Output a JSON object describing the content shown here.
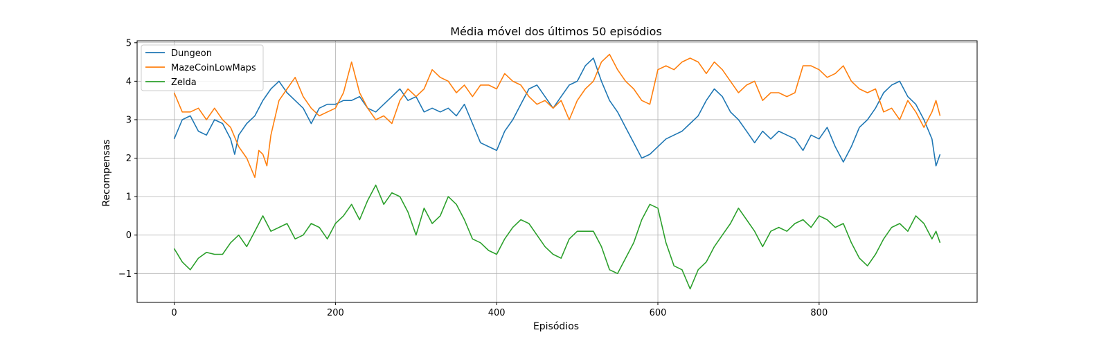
{
  "chart_data": {
    "type": "line",
    "title": "Média móvel dos últimos 50 episódios",
    "xlabel": "Episódios",
    "ylabel": "Recompensas",
    "xlim": [
      -46,
      996
    ],
    "ylim": [
      -1.75,
      5.05
    ],
    "xticks": [
      0,
      200,
      400,
      600,
      800
    ],
    "yticks": [
      -1,
      0,
      1,
      2,
      3,
      4,
      5
    ],
    "xtick_labels": [
      "0",
      "200",
      "400",
      "600",
      "800"
    ],
    "ytick_labels": [
      "−1",
      "0",
      "1",
      "2",
      "3",
      "4",
      "5"
    ],
    "grid": true,
    "legend_position": "top-left",
    "series": [
      {
        "name": "Dungeon",
        "color": "#1f77b4",
        "x": [
          0,
          10,
          20,
          30,
          40,
          50,
          60,
          70,
          75,
          80,
          90,
          100,
          110,
          120,
          130,
          140,
          150,
          160,
          170,
          180,
          190,
          200,
          210,
          220,
          230,
          240,
          250,
          260,
          270,
          280,
          290,
          300,
          310,
          320,
          330,
          340,
          350,
          360,
          370,
          380,
          390,
          400,
          410,
          420,
          430,
          440,
          450,
          460,
          470,
          480,
          490,
          500,
          510,
          520,
          530,
          540,
          550,
          560,
          570,
          580,
          590,
          600,
          610,
          620,
          630,
          640,
          650,
          660,
          670,
          680,
          690,
          700,
          710,
          720,
          730,
          740,
          750,
          760,
          770,
          780,
          790,
          800,
          810,
          820,
          830,
          840,
          850,
          860,
          870,
          880,
          890,
          900,
          910,
          920,
          930,
          940,
          945,
          950
        ],
        "y": [
          2.5,
          3.0,
          3.1,
          2.7,
          2.6,
          3.0,
          2.9,
          2.5,
          2.1,
          2.6,
          2.9,
          3.1,
          3.5,
          3.8,
          4.0,
          3.7,
          3.5,
          3.3,
          2.9,
          3.3,
          3.4,
          3.4,
          3.5,
          3.5,
          3.6,
          3.3,
          3.2,
          3.4,
          3.6,
          3.8,
          3.5,
          3.6,
          3.2,
          3.3,
          3.2,
          3.3,
          3.1,
          3.4,
          2.9,
          2.4,
          2.3,
          2.2,
          2.7,
          3.0,
          3.4,
          3.8,
          3.9,
          3.6,
          3.3,
          3.6,
          3.9,
          4.0,
          4.4,
          4.6,
          4.0,
          3.5,
          3.2,
          2.8,
          2.4,
          2.0,
          2.1,
          2.3,
          2.5,
          2.6,
          2.7,
          2.9,
          3.1,
          3.5,
          3.8,
          3.6,
          3.2,
          3.0,
          2.7,
          2.4,
          2.7,
          2.5,
          2.7,
          2.6,
          2.5,
          2.2,
          2.6,
          2.5,
          2.8,
          2.3,
          1.9,
          2.3,
          2.8,
          3.0,
          3.3,
          3.7,
          3.9,
          4.0,
          3.6,
          3.4,
          3.0,
          2.5,
          1.8,
          2.1
        ]
      },
      {
        "name": "MazeCoinLowMaps",
        "color": "#ff7f0e",
        "x": [
          0,
          10,
          20,
          30,
          40,
          50,
          60,
          70,
          80,
          90,
          100,
          105,
          110,
          115,
          120,
          130,
          140,
          150,
          160,
          170,
          180,
          190,
          200,
          210,
          220,
          230,
          240,
          250,
          260,
          270,
          280,
          290,
          300,
          310,
          320,
          330,
          340,
          350,
          360,
          370,
          380,
          390,
          400,
          410,
          420,
          430,
          440,
          450,
          460,
          470,
          480,
          490,
          500,
          510,
          520,
          530,
          540,
          550,
          560,
          570,
          580,
          590,
          600,
          610,
          620,
          630,
          640,
          650,
          660,
          670,
          680,
          690,
          700,
          710,
          720,
          730,
          740,
          750,
          760,
          770,
          780,
          790,
          800,
          810,
          820,
          830,
          840,
          850,
          860,
          870,
          880,
          890,
          900,
          910,
          920,
          930,
          940,
          945,
          950
        ],
        "y": [
          3.7,
          3.2,
          3.2,
          3.3,
          3.0,
          3.3,
          3.0,
          2.8,
          2.3,
          2.0,
          1.5,
          2.2,
          2.1,
          1.8,
          2.6,
          3.5,
          3.8,
          4.1,
          3.6,
          3.3,
          3.1,
          3.2,
          3.3,
          3.7,
          4.5,
          3.7,
          3.3,
          3.0,
          3.1,
          2.9,
          3.5,
          3.8,
          3.6,
          3.8,
          4.3,
          4.1,
          4.0,
          3.7,
          3.9,
          3.6,
          3.9,
          3.9,
          3.8,
          4.2,
          4.0,
          3.9,
          3.6,
          3.4,
          3.5,
          3.3,
          3.5,
          3.0,
          3.5,
          3.8,
          4.0,
          4.5,
          4.7,
          4.3,
          4.0,
          3.8,
          3.5,
          3.4,
          4.3,
          4.4,
          4.3,
          4.5,
          4.6,
          4.5,
          4.2,
          4.5,
          4.3,
          4.0,
          3.7,
          3.9,
          4.0,
          3.5,
          3.7,
          3.7,
          3.6,
          3.7,
          4.4,
          4.4,
          4.3,
          4.1,
          4.2,
          4.4,
          4.0,
          3.8,
          3.7,
          3.8,
          3.2,
          3.3,
          3.0,
          3.5,
          3.2,
          2.8,
          3.2,
          3.5,
          3.1
        ]
      },
      {
        "name": "Zelda",
        "color": "#2ca02c",
        "x": [
          0,
          10,
          20,
          30,
          40,
          50,
          60,
          70,
          80,
          90,
          100,
          110,
          120,
          130,
          140,
          150,
          160,
          170,
          180,
          190,
          200,
          210,
          220,
          230,
          240,
          250,
          260,
          270,
          280,
          290,
          300,
          310,
          320,
          330,
          340,
          350,
          360,
          370,
          380,
          390,
          400,
          410,
          420,
          430,
          440,
          450,
          460,
          470,
          480,
          490,
          500,
          510,
          520,
          530,
          540,
          550,
          560,
          570,
          580,
          590,
          600,
          610,
          620,
          630,
          640,
          650,
          660,
          670,
          680,
          690,
          700,
          710,
          720,
          730,
          740,
          750,
          760,
          770,
          780,
          790,
          800,
          810,
          820,
          830,
          840,
          850,
          860,
          870,
          880,
          890,
          900,
          910,
          920,
          930,
          940,
          945,
          950
        ],
        "y": [
          -0.35,
          -0.7,
          -0.9,
          -0.6,
          -0.45,
          -0.5,
          -0.5,
          -0.2,
          0.0,
          -0.3,
          0.1,
          0.5,
          0.1,
          0.2,
          0.3,
          -0.1,
          0.0,
          0.3,
          0.2,
          -0.1,
          0.3,
          0.5,
          0.8,
          0.4,
          0.9,
          1.3,
          0.8,
          1.1,
          1.0,
          0.6,
          0.0,
          0.7,
          0.3,
          0.5,
          1.0,
          0.8,
          0.4,
          -0.1,
          -0.2,
          -0.4,
          -0.5,
          -0.1,
          0.2,
          0.4,
          0.3,
          0.0,
          -0.3,
          -0.5,
          -0.6,
          -0.1,
          0.1,
          0.1,
          0.1,
          -0.3,
          -0.9,
          -1.0,
          -0.6,
          -0.2,
          0.4,
          0.8,
          0.7,
          -0.2,
          -0.8,
          -0.9,
          -1.4,
          -0.9,
          -0.7,
          -0.3,
          0.0,
          0.3,
          0.7,
          0.4,
          0.1,
          -0.3,
          0.1,
          0.2,
          0.1,
          0.3,
          0.4,
          0.2,
          0.5,
          0.4,
          0.2,
          0.3,
          -0.2,
          -0.6,
          -0.8,
          -0.5,
          -0.1,
          0.2,
          0.3,
          0.1,
          0.5,
          0.3,
          -0.1,
          0.1,
          -0.2
        ]
      }
    ]
  }
}
